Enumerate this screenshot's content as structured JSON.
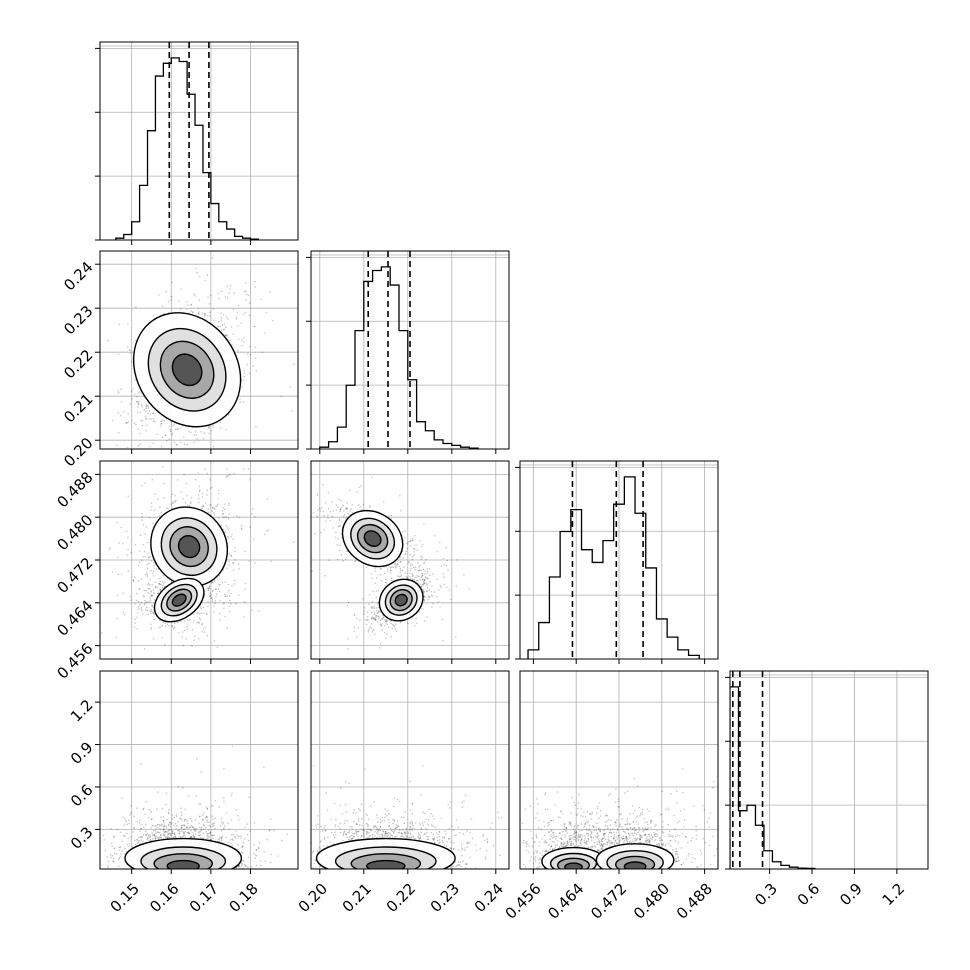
{
  "chart_data": {
    "type": "corner",
    "grid": true,
    "parameters": [
      {
        "range": [
          0.142,
          0.192
        ],
        "ticks": [
          0.15,
          0.16,
          0.17,
          0.18
        ],
        "tick_labels": [
          "0.15",
          "0.16",
          "0.17",
          "0.18"
        ],
        "quantiles": [
          0.1595,
          0.1645,
          0.1695
        ]
      },
      {
        "range": [
          0.198,
          0.243
        ],
        "ticks": [
          0.2,
          0.21,
          0.22,
          0.23,
          0.24
        ],
        "tick_labels": [
          "0.20",
          "0.21",
          "0.22",
          "0.23",
          "0.24"
        ],
        "quantiles": [
          0.211,
          0.2155,
          0.2205
        ]
      },
      {
        "range": [
          0.4535,
          0.4905
        ],
        "ticks": [
          0.456,
          0.464,
          0.472,
          0.48,
          0.488
        ],
        "tick_labels": [
          "0.456",
          "0.464",
          "0.472",
          "0.480",
          "0.488"
        ],
        "quantiles": [
          0.4633,
          0.4715,
          0.4765
        ]
      },
      {
        "range": [
          0.02,
          1.42
        ],
        "ticks": [
          0.3,
          0.6,
          0.9,
          1.2
        ],
        "tick_labels": [
          "0.3",
          "0.6",
          "0.9",
          "1.2"
        ],
        "quantiles": [
          0.04,
          0.09,
          0.25
        ]
      }
    ],
    "histograms": [
      {
        "param": 0,
        "edges": [
          0.146,
          0.148,
          0.15,
          0.152,
          0.154,
          0.156,
          0.158,
          0.16,
          0.162,
          0.164,
          0.166,
          0.168,
          0.17,
          0.172,
          0.174,
          0.176,
          0.178,
          0.18,
          0.182
        ],
        "counts": [
          0.01,
          0.03,
          0.1,
          0.3,
          0.6,
          0.9,
          0.97,
          1.0,
          0.98,
          0.8,
          0.63,
          0.37,
          0.2,
          0.1,
          0.06,
          0.02,
          0.01,
          0.005
        ]
      },
      {
        "param": 1,
        "edges": [
          0.2,
          0.202,
          0.204,
          0.206,
          0.208,
          0.21,
          0.212,
          0.214,
          0.216,
          0.218,
          0.22,
          0.222,
          0.224,
          0.226,
          0.228,
          0.23,
          0.232,
          0.234,
          0.236
        ],
        "counts": [
          0.01,
          0.04,
          0.12,
          0.35,
          0.65,
          0.92,
          0.98,
          1.0,
          0.9,
          0.65,
          0.38,
          0.15,
          0.1,
          0.05,
          0.03,
          0.02,
          0.01,
          0.005
        ]
      },
      {
        "param": 2,
        "edges": [
          0.455,
          0.457,
          0.459,
          0.461,
          0.463,
          0.465,
          0.467,
          0.469,
          0.471,
          0.473,
          0.475,
          0.477,
          0.479,
          0.481,
          0.483,
          0.485,
          0.487
        ],
        "counts": [
          0.05,
          0.2,
          0.45,
          0.7,
          0.82,
          0.6,
          0.53,
          0.65,
          0.85,
          1.0,
          0.8,
          0.5,
          0.22,
          0.12,
          0.05,
          0.02
        ]
      },
      {
        "param": 3,
        "edges": [
          0.02,
          0.08,
          0.14,
          0.2,
          0.26,
          0.32,
          0.38,
          0.44,
          0.5,
          0.56,
          0.62
        ],
        "counts": [
          1.0,
          0.32,
          0.35,
          0.24,
          0.1,
          0.04,
          0.02,
          0.01,
          0.005,
          0.003
        ]
      }
    ],
    "pairs": [
      {
        "x": 0,
        "y": 1,
        "blobs": [
          {
            "cx": 0.164,
            "cy": 0.216,
            "sx": 0.006,
            "sy": 0.0065,
            "rho": 0.3,
            "w": 1
          }
        ]
      },
      {
        "x": 0,
        "y": 2,
        "blobs": [
          {
            "cx": 0.1645,
            "cy": 0.4745,
            "sx": 0.0055,
            "sy": 0.0045,
            "rho": 0.1,
            "w": 0.62
          },
          {
            "cx": 0.162,
            "cy": 0.4645,
            "sx": 0.005,
            "sy": 0.0025,
            "rho": 0.1,
            "w": 0.38
          }
        ]
      },
      {
        "x": 1,
        "y": 2,
        "blobs": [
          {
            "cx": 0.212,
            "cy": 0.476,
            "sx": 0.0045,
            "sy": 0.003,
            "rho": -0.6,
            "w": 0.55
          },
          {
            "cx": 0.2185,
            "cy": 0.4645,
            "sx": 0.0035,
            "sy": 0.0025,
            "rho": 0.6,
            "w": 0.45
          }
        ]
      },
      {
        "x": 0,
        "y": 3,
        "blobs": [
          {
            "cx": 0.163,
            "cy": 0.12,
            "sx": 0.007,
            "sy": 0.12,
            "rho": 0.0,
            "w": 1
          }
        ]
      },
      {
        "x": 1,
        "y": 3,
        "blobs": [
          {
            "cx": 0.215,
            "cy": 0.12,
            "sx": 0.0075,
            "sy": 0.12,
            "rho": 0.0,
            "w": 1
          }
        ]
      },
      {
        "x": 2,
        "y": 3,
        "blobs": [
          {
            "cx": 0.4635,
            "cy": 0.12,
            "sx": 0.004,
            "sy": 0.12,
            "rho": 0.0,
            "w": 0.45
          },
          {
            "cx": 0.475,
            "cy": 0.13,
            "sx": 0.0045,
            "sy": 0.13,
            "rho": 0.0,
            "w": 0.55
          }
        ]
      }
    ]
  }
}
